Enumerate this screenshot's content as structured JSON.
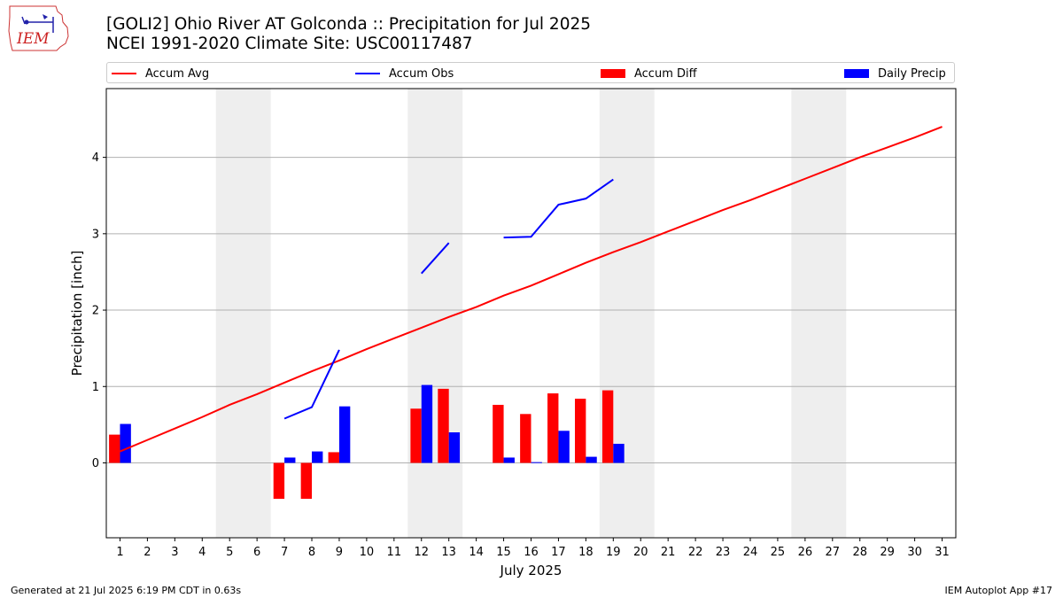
{
  "header": {
    "title_line1": "[GOLI2] Ohio River  AT Golconda :: Precipitation for Jul 2025",
    "title_line2": "NCEI 1991-2020 Climate Site: USC00117487",
    "logo_text": "IEM"
  },
  "footer": {
    "left": "Generated at 21 Jul 2025 6:19 PM CDT in 0.63s",
    "right": "IEM Autoplot App #17"
  },
  "chart_data": {
    "type": "bar",
    "title": "[GOLI2] Ohio River  AT Golconda :: Precipitation for Jul 2025",
    "subtitle": "NCEI 1991-2020 Climate Site: USC00117487",
    "xlabel": "July 2025",
    "ylabel": "Precipitation [inch]",
    "xlim": [
      0.5,
      31.5
    ],
    "ylim": [
      -0.98,
      4.9
    ],
    "x_ticks": [
      1,
      2,
      3,
      4,
      5,
      6,
      7,
      8,
      9,
      10,
      11,
      12,
      13,
      14,
      15,
      16,
      17,
      18,
      19,
      20,
      21,
      22,
      23,
      24,
      25,
      26,
      27,
      28,
      29,
      30,
      31
    ],
    "y_ticks": [
      0,
      1,
      2,
      3,
      4
    ],
    "grid": "y",
    "legend_position": "top",
    "weekend_shading": [
      [
        4.5,
        6.5
      ],
      [
        11.5,
        13.5
      ],
      [
        18.5,
        20.5
      ],
      [
        25.5,
        27.5
      ]
    ],
    "weekend_color": "#eeeeee",
    "series": [
      {
        "name": "Accum Avg",
        "kind": "line",
        "color": "#ff0000",
        "x": [
          1,
          2,
          3,
          4,
          5,
          6,
          7,
          8,
          9,
          10,
          11,
          12,
          13,
          14,
          15,
          16,
          17,
          18,
          19,
          20,
          21,
          22,
          23,
          24,
          25,
          26,
          27,
          28,
          29,
          30,
          31
        ],
        "values": [
          0.15,
          0.3,
          0.45,
          0.6,
          0.76,
          0.9,
          1.05,
          1.2,
          1.34,
          1.49,
          1.63,
          1.77,
          1.91,
          2.04,
          2.19,
          2.32,
          2.47,
          2.62,
          2.76,
          2.89,
          3.03,
          3.17,
          3.31,
          3.44,
          3.58,
          3.72,
          3.86,
          4.0,
          4.13,
          4.26,
          4.4
        ]
      },
      {
        "name": "Accum Obs",
        "kind": "line",
        "color": "#0000ff",
        "x": [
          7,
          8,
          9,
          12,
          13,
          15,
          16,
          17,
          18,
          19
        ],
        "values": [
          0.58,
          0.73,
          1.48,
          2.48,
          2.88,
          2.95,
          2.96,
          3.38,
          3.46,
          3.71
        ],
        "segments": [
          [
            7,
            8,
            9
          ],
          [
            12,
            13
          ],
          [
            15,
            16,
            17,
            18,
            19
          ]
        ]
      },
      {
        "name": "Accum Diff",
        "kind": "bar",
        "color": "#ff0000",
        "x": [
          1,
          7,
          8,
          9,
          12,
          13,
          15,
          16,
          17,
          18,
          19
        ],
        "values": [
          0.37,
          -0.47,
          -0.47,
          0.14,
          0.71,
          0.97,
          0.76,
          0.64,
          0.91,
          0.84,
          0.95
        ]
      },
      {
        "name": "Daily Precip",
        "kind": "bar",
        "color": "#0000ff",
        "x": [
          1,
          7,
          8,
          9,
          12,
          13,
          15,
          16,
          17,
          18,
          19
        ],
        "values": [
          0.51,
          0.07,
          0.15,
          0.74,
          1.02,
          0.4,
          0.07,
          0.01,
          0.42,
          0.08,
          0.25
        ]
      }
    ]
  }
}
